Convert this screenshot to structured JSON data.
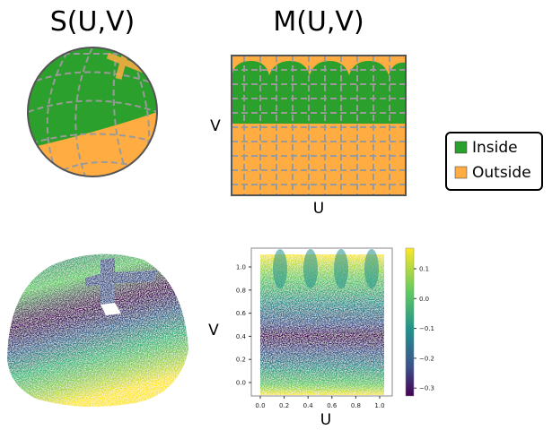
{
  "sphere": {
    "title": "S(U,V)"
  },
  "map": {
    "title": "M(U,V)",
    "x_label": "U",
    "y_label": "V"
  },
  "legend": {
    "items": [
      {
        "label": "Inside",
        "color": "#2ca02c"
      },
      {
        "label": "Outside",
        "color": "#ffad42"
      }
    ]
  },
  "scatter": {
    "x_label": "U",
    "y_label": "V",
    "xticks": [
      "0.0",
      "0.2",
      "0.4",
      "0.6",
      "0.8",
      "1.0"
    ],
    "yticks": [
      "0.0",
      "0.2",
      "0.4",
      "0.6",
      "0.8",
      "1.0"
    ],
    "colorbar_ticks": [
      "0.1",
      "0.0",
      "−0.1",
      "−0.2",
      "−0.3"
    ]
  }
}
